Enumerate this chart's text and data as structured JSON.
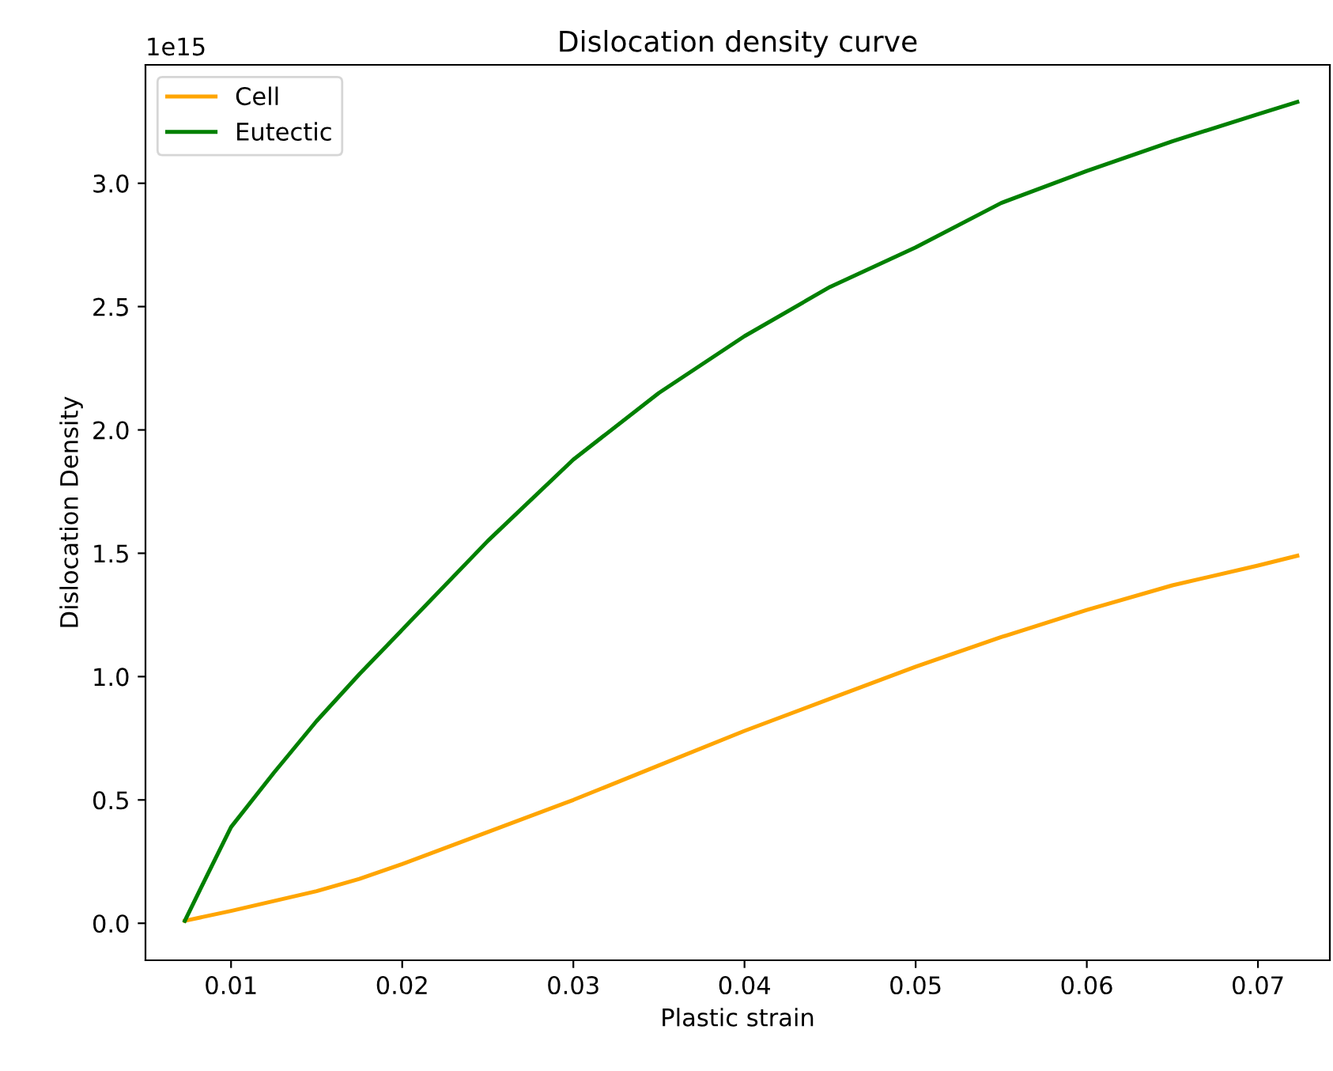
{
  "chart_data": {
    "type": "line",
    "title": "Dislocation density curve",
    "xlabel": "Plastic strain",
    "ylabel": "Dislocation Density",
    "annotations": [
      "1e15"
    ],
    "series": [
      {
        "name": "Cell",
        "color": "#ffa500",
        "x": [
          0.0073,
          0.01,
          0.0125,
          0.015,
          0.0175,
          0.02,
          0.025,
          0.03,
          0.035,
          0.04,
          0.045,
          0.05,
          0.055,
          0.06,
          0.065,
          0.07,
          0.0723
        ],
        "values": [
          0.01,
          0.05,
          0.09,
          0.13,
          0.18,
          0.24,
          0.37,
          0.5,
          0.64,
          0.78,
          0.91,
          1.04,
          1.16,
          1.27,
          1.37,
          1.45,
          1.49
        ]
      },
      {
        "name": "Eutectic",
        "color": "#008000",
        "x": [
          0.0073,
          0.0085,
          0.01,
          0.0125,
          0.015,
          0.0175,
          0.02,
          0.025,
          0.03,
          0.035,
          0.04,
          0.045,
          0.05,
          0.055,
          0.06,
          0.065,
          0.07,
          0.0723
        ],
        "values": [
          0.01,
          0.18,
          0.39,
          0.61,
          0.82,
          1.01,
          1.19,
          1.55,
          1.88,
          2.15,
          2.38,
          2.58,
          2.74,
          2.92,
          3.05,
          3.17,
          3.28,
          3.33
        ]
      }
    ],
    "xlim": [
      0.005,
      0.0742
    ],
    "xticks": [
      0.01,
      0.02,
      0.03,
      0.04,
      0.05,
      0.06,
      0.07
    ],
    "ylim": [
      -0.15,
      3.48
    ],
    "yticks": [
      {
        "value": 0,
        "label": "0.0"
      },
      0.5,
      {
        "value": 1,
        "label": "1.0"
      },
      1.5,
      {
        "value": 2,
        "label": "2.0"
      },
      2.5,
      {
        "value": 3,
        "label": "3.0"
      }
    ],
    "legend": "top left",
    "grid": false
  }
}
